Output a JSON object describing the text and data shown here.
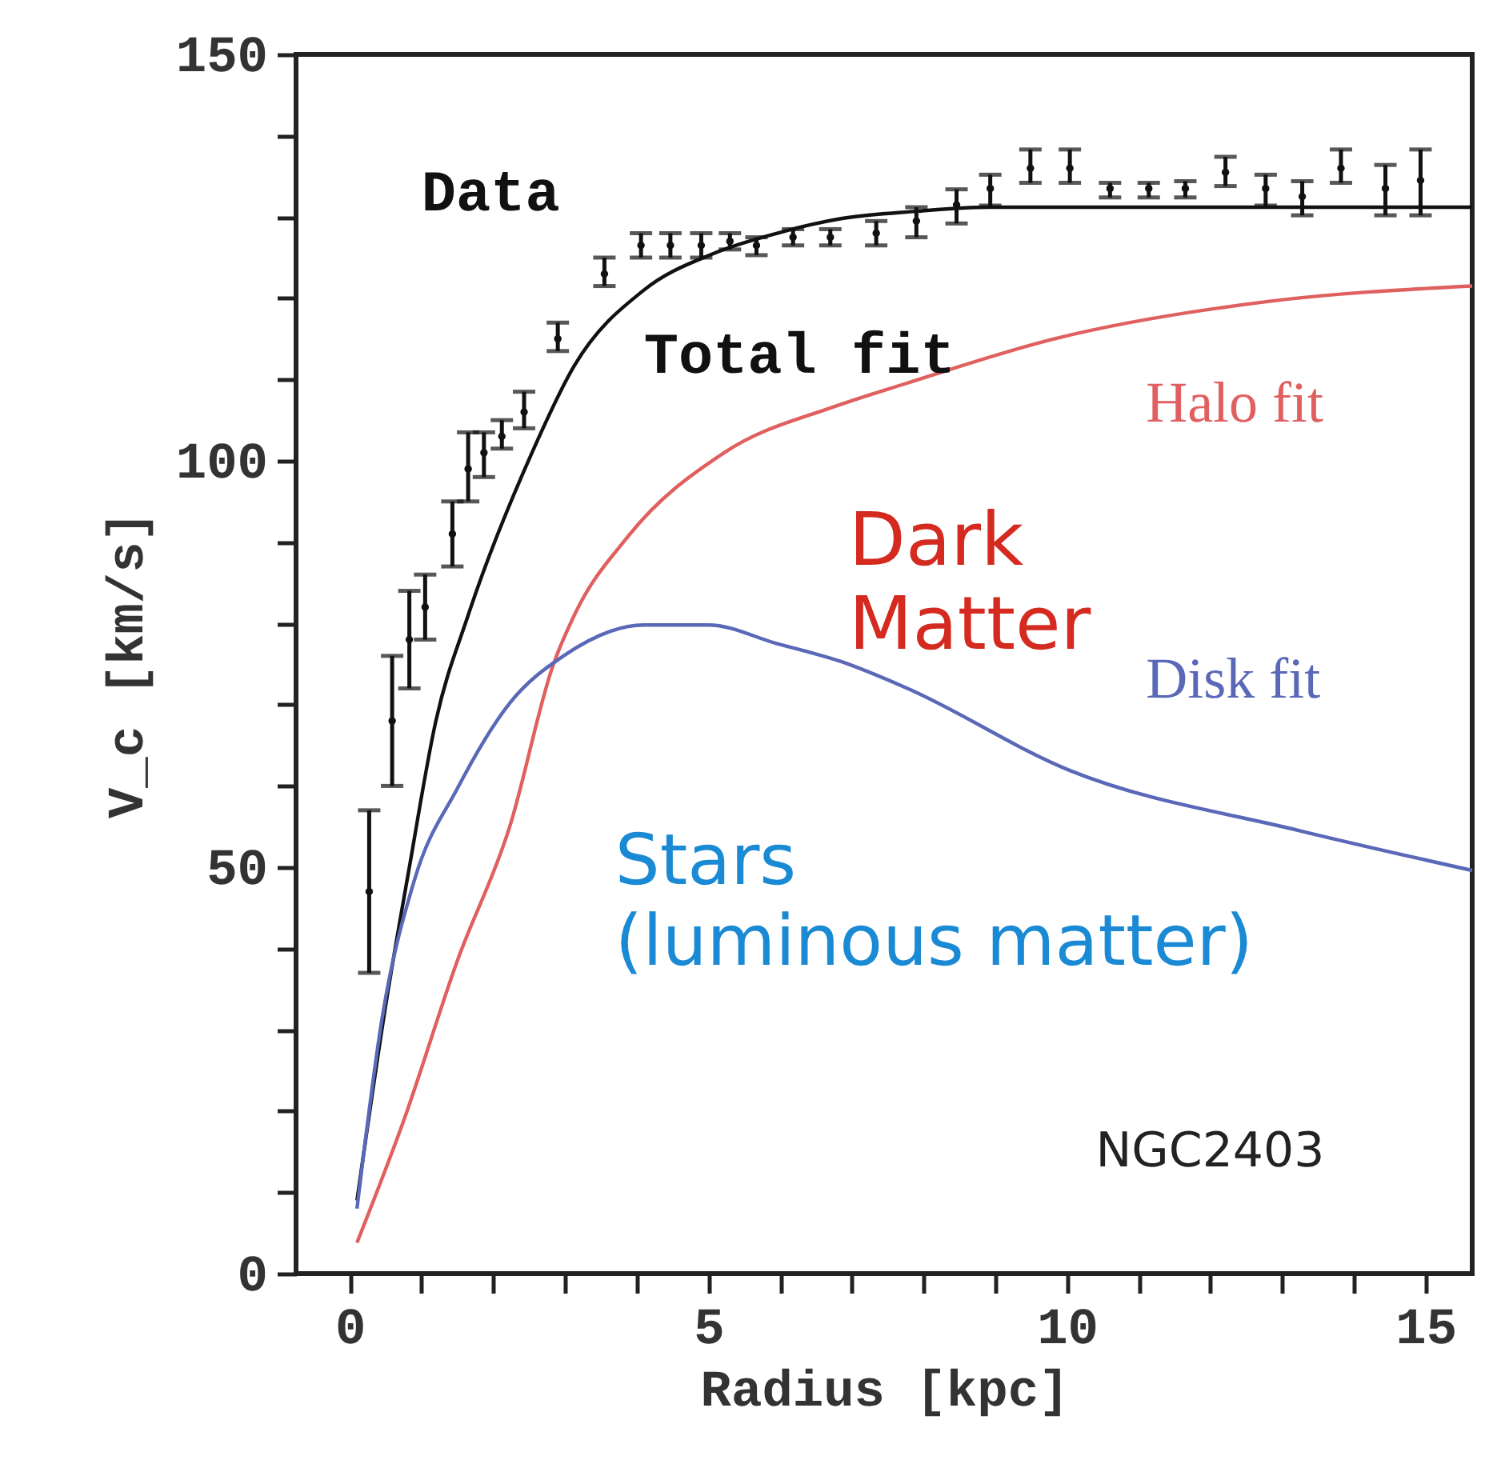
{
  "chart_data": {
    "type": "line",
    "xlabel": "Radius [kpc]",
    "ylabel": "V_c [km/s]",
    "xlim": [
      -0.75,
      15.65
    ],
    "ylim": [
      0,
      150
    ],
    "xticks": [
      0,
      {
        "value": 1,
        "label": null
      },
      {
        "value": 2,
        "label": null
      },
      {
        "value": 3,
        "label": null
      },
      {
        "value": 4,
        "label": null
      },
      5,
      {
        "value": 6,
        "label": null
      },
      {
        "value": 7,
        "label": null
      },
      {
        "value": 8,
        "label": null
      },
      {
        "value": 9,
        "label": null
      },
      10,
      {
        "value": 11,
        "label": null
      },
      {
        "value": 12,
        "label": null
      },
      {
        "value": 13,
        "label": null
      },
      {
        "value": 14,
        "label": null
      },
      15
    ],
    "yticks": [
      0,
      {
        "value": 10,
        "label": null
      },
      {
        "value": 20,
        "label": null
      },
      {
        "value": 30,
        "label": null
      },
      {
        "value": 40,
        "label": null
      },
      50,
      {
        "value": 60,
        "label": null
      },
      {
        "value": 70,
        "label": null
      },
      {
        "value": 80,
        "label": null
      },
      {
        "value": 90,
        "label": null
      },
      100,
      {
        "value": 110,
        "label": null
      },
      {
        "value": 120,
        "label": null
      },
      {
        "value": 130,
        "label": null
      },
      {
        "value": 140,
        "label": null
      },
      150
    ],
    "grid": false,
    "series": [
      {
        "name": "Data",
        "type": "scatter",
        "marker": "circle",
        "color": "#111111",
        "x": [
          0.27,
          0.59,
          0.83,
          1.05,
          1.43,
          1.65,
          1.87,
          2.12,
          2.43,
          2.9,
          3.55,
          4.06,
          4.47,
          4.9,
          5.3,
          5.67,
          6.18,
          6.7,
          7.34,
          7.9,
          8.46,
          8.93,
          9.49,
          10.04,
          10.6,
          11.14,
          11.65,
          12.21,
          12.77,
          13.28,
          13.82,
          14.44,
          14.93
        ],
        "values": [
          47,
          68,
          78,
          82,
          91,
          99,
          101,
          103,
          106,
          115,
          123,
          126.5,
          126.5,
          126.5,
          127,
          126.5,
          127.5,
          127.5,
          128,
          129.5,
          131.5,
          133.5,
          136,
          136,
          133.5,
          133.5,
          133.5,
          135.5,
          133.5,
          132.5,
          136,
          133.5,
          134.5
        ],
        "errors": [
          [
            37,
            57
          ],
          [
            60,
            76
          ],
          [
            72,
            84
          ],
          [
            78,
            86
          ],
          [
            87,
            95
          ],
          [
            95,
            103.5
          ],
          [
            98,
            103.5
          ],
          [
            101.5,
            105
          ],
          [
            104,
            108.5
          ],
          [
            113.5,
            117
          ],
          [
            121.5,
            125
          ],
          [
            125,
            128
          ],
          [
            125,
            128
          ],
          [
            125,
            128
          ],
          [
            126,
            128
          ],
          [
            125.3,
            127.5
          ],
          [
            126.5,
            128.5
          ],
          [
            126.5,
            128.5
          ],
          [
            126.5,
            129.5
          ],
          [
            127.5,
            131.2
          ],
          [
            129.2,
            133.4
          ],
          [
            131.4,
            135.2
          ],
          [
            134.2,
            138.3
          ],
          [
            134.2,
            138.3
          ],
          [
            132.4,
            134.2
          ],
          [
            132.4,
            134.2
          ],
          [
            132.4,
            134.4
          ],
          [
            133.8,
            137.4
          ],
          [
            131.4,
            135.2
          ],
          [
            130.2,
            134.4
          ],
          [
            134.2,
            138.3
          ],
          [
            130.2,
            136.4
          ],
          [
            130.2,
            138.3
          ]
        ]
      },
      {
        "name": "Total fit",
        "color": "#111111",
        "line_style": "solid",
        "x": [
          0.1,
          0.5,
          0.83,
          1.2,
          1.65,
          2.54,
          3.13,
          4.1,
          5.07,
          5.96,
          6.85,
          7.9,
          8.9,
          10,
          12,
          14,
          15.65
        ],
        "values": [
          9,
          33,
          50,
          68,
          81,
          101,
          111.7,
          121,
          125.5,
          128,
          129.8,
          130.7,
          131.2,
          131.2,
          131.2,
          131.2,
          131.2
        ]
      },
      {
        "name": "Halo fit",
        "type": "line",
        "color": "#e06060",
        "line_style": "solid",
        "x": [
          0.1,
          0.75,
          1.5,
          2.23,
          2.84,
          3.13,
          3.88,
          5.22,
          6.8,
          7.75,
          9.82,
          12.8,
          15.65
        ],
        "values": [
          3.8,
          18.8,
          38.5,
          55,
          75,
          81,
          90.7,
          101,
          106.8,
          109.5,
          115,
          119.6,
          121.5
        ]
      },
      {
        "name": "Disk fit",
        "type": "line",
        "color": "#5a68b8",
        "line_style": "solid",
        "x": [
          0.1,
          0.45,
          0.9,
          1.5,
          2.23,
          2.98,
          4.1,
          5.0,
          5.96,
          6.85,
          7.75,
          10.04,
          13.24,
          15.65
        ],
        "values": [
          8,
          31.4,
          48.4,
          59.7,
          70.2,
          76,
          79.8,
          79.8,
          77.5,
          75.3,
          72.1,
          61.9,
          54.5,
          49.6
        ]
      }
    ],
    "annotations": [
      "Dark Matter",
      "Stars (luminous matter)",
      "NGC2403"
    ]
  }
}
